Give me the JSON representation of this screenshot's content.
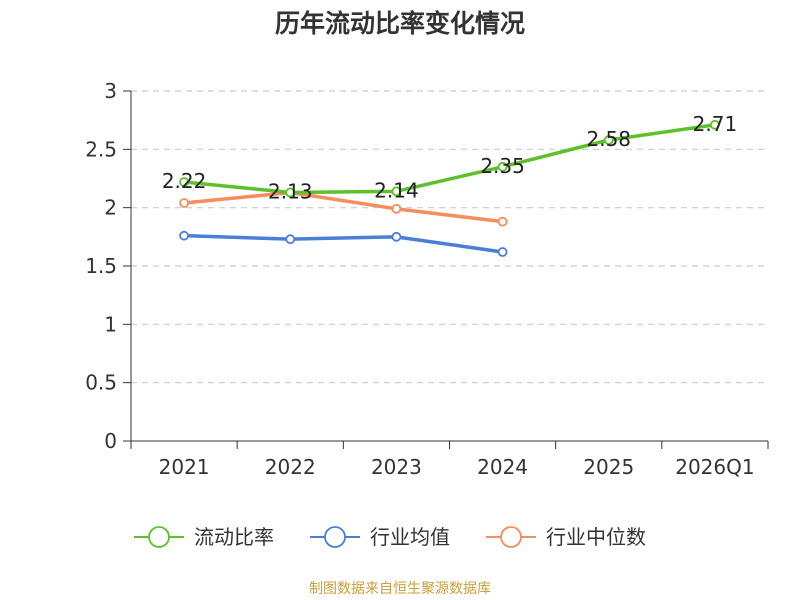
{
  "chart_data": {
    "type": "line",
    "title": "历年流动比率变化情况",
    "categories": [
      "2021",
      "2022",
      "2023",
      "2024",
      "2025",
      "2026Q1"
    ],
    "ylim": [
      0,
      3
    ],
    "yticks": [
      "0",
      "0.5",
      "1",
      "1.5",
      "2",
      "2.5",
      "3"
    ],
    "grid": true,
    "legend_position": "bottom",
    "series": [
      {
        "name": "流动比率",
        "color": "#5dc12b",
        "values": [
          2.22,
          2.13,
          2.14,
          2.35,
          2.58,
          2.71
        ],
        "labels": [
          "2.22",
          "2.13",
          "2.14",
          "2.35",
          "2.58",
          "2.71"
        ]
      },
      {
        "name": "行业均值",
        "color": "#4a7fd8",
        "values": [
          1.76,
          1.73,
          1.75,
          1.62,
          null,
          null
        ]
      },
      {
        "name": "行业中位数",
        "color": "#f58d5c",
        "values": [
          2.04,
          2.13,
          1.99,
          1.88,
          null,
          null
        ]
      }
    ]
  },
  "footer": {
    "source": "制图数据来自恒生聚源数据库"
  }
}
